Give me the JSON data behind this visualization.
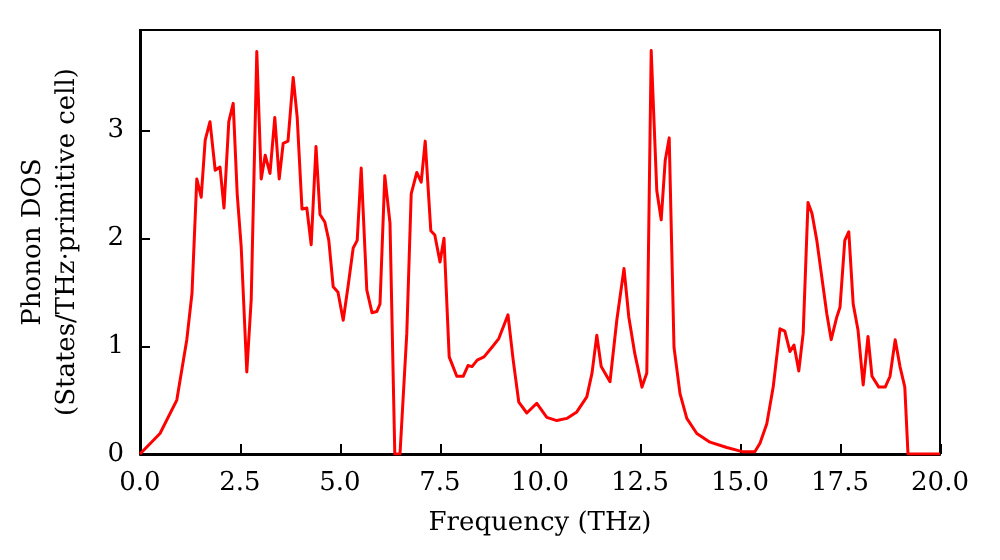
{
  "chart_data": {
    "type": "line",
    "xlabel": "Frequency (THz)",
    "ylabel": "Phonon DOS\n(States/THz·primitive cell)",
    "xlim": [
      0,
      20
    ],
    "ylim": [
      0,
      3.93
    ],
    "xticks": [
      {
        "value": 0,
        "label": "0.0"
      },
      {
        "value": 2.5,
        "label": "2.5"
      },
      {
        "value": 5,
        "label": "5.0"
      },
      {
        "value": 7.5,
        "label": "7.5"
      },
      {
        "value": 10,
        "label": "10.0"
      },
      {
        "value": 12.5,
        "label": "12.5"
      },
      {
        "value": 15,
        "label": "15.0"
      },
      {
        "value": 17.5,
        "label": "17.5"
      },
      {
        "value": 20,
        "label": "20.0"
      }
    ],
    "yticks": [
      0,
      1,
      2,
      3
    ],
    "grid": false,
    "marker": "none",
    "line_style": "solid",
    "series": [
      {
        "color": "#ff0000",
        "x": [
          0,
          0.5,
          0.92,
          1.17,
          1.3,
          1.42,
          1.53,
          1.63,
          1.75,
          1.88,
          2.0,
          2.1,
          2.22,
          2.33,
          2.43,
          2.53,
          2.67,
          2.78,
          2.92,
          3.03,
          3.13,
          3.25,
          3.37,
          3.48,
          3.58,
          3.7,
          3.83,
          3.93,
          4.05,
          4.17,
          4.28,
          4.4,
          4.5,
          4.62,
          4.72,
          4.83,
          4.95,
          5.08,
          5.2,
          5.33,
          5.43,
          5.53,
          5.67,
          5.8,
          5.92,
          6.0,
          6.12,
          6.25,
          6.37,
          6.5,
          6.67,
          6.78,
          6.92,
          7.03,
          7.13,
          7.27,
          7.37,
          7.5,
          7.6,
          7.73,
          7.92,
          8.08,
          8.2,
          8.3,
          8.43,
          8.6,
          8.8,
          8.97,
          9.2,
          9.33,
          9.47,
          9.67,
          9.92,
          10.17,
          10.42,
          10.67,
          10.92,
          11.17,
          11.3,
          11.42,
          11.53,
          11.75,
          11.92,
          12.1,
          12.22,
          12.37,
          12.55,
          12.67,
          12.78,
          12.92,
          13.03,
          13.13,
          13.23,
          13.35,
          13.5,
          13.67,
          13.92,
          14.25,
          14.67,
          15.08,
          15.37,
          15.5,
          15.67,
          15.83,
          16.0,
          16.12,
          16.25,
          16.35,
          16.47,
          16.58,
          16.7,
          16.8,
          16.92,
          17.17,
          17.28,
          17.42,
          17.5,
          17.62,
          17.72,
          17.83,
          17.95,
          18.08,
          18.2,
          18.3,
          18.47,
          18.63,
          18.75,
          18.88,
          19.0,
          19.12,
          19.2,
          20.0
        ],
        "values": [
          0,
          0.19,
          0.5,
          1.06,
          1.49,
          2.55,
          2.38,
          2.91,
          3.08,
          2.63,
          2.66,
          2.28,
          3.08,
          3.25,
          2.41,
          1.92,
          0.76,
          1.43,
          3.73,
          2.55,
          2.77,
          2.6,
          3.12,
          2.55,
          2.88,
          2.9,
          3.49,
          3.12,
          2.27,
          2.28,
          1.94,
          2.85,
          2.22,
          2.15,
          1.98,
          1.55,
          1.5,
          1.24,
          1.55,
          1.91,
          1.98,
          2.65,
          1.52,
          1.31,
          1.32,
          1.39,
          2.58,
          2.14,
          0,
          0,
          1.12,
          2.41,
          2.61,
          2.52,
          2.9,
          2.07,
          2.03,
          1.78,
          2.0,
          0.9,
          0.72,
          0.72,
          0.82,
          0.81,
          0.87,
          0.9,
          0.99,
          1.07,
          1.29,
          0.87,
          0.48,
          0.38,
          0.47,
          0.34,
          0.31,
          0.33,
          0.39,
          0.53,
          0.75,
          1.1,
          0.81,
          0.67,
          1.24,
          1.72,
          1.27,
          0.93,
          0.62,
          0.75,
          3.74,
          2.44,
          2.17,
          2.72,
          2.93,
          0.99,
          0.56,
          0.33,
          0.19,
          0.11,
          0.06,
          0.02,
          0.02,
          0.1,
          0.28,
          0.62,
          1.16,
          1.14,
          0.95,
          1.01,
          0.77,
          1.12,
          2.33,
          2.23,
          1.98,
          1.3,
          1.06,
          1.27,
          1.36,
          1.98,
          2.06,
          1.39,
          1.15,
          0.64,
          1.09,
          0.72,
          0.62,
          0.62,
          0.72,
          1.06,
          0.81,
          0.62,
          0,
          0
        ]
      }
    ]
  }
}
